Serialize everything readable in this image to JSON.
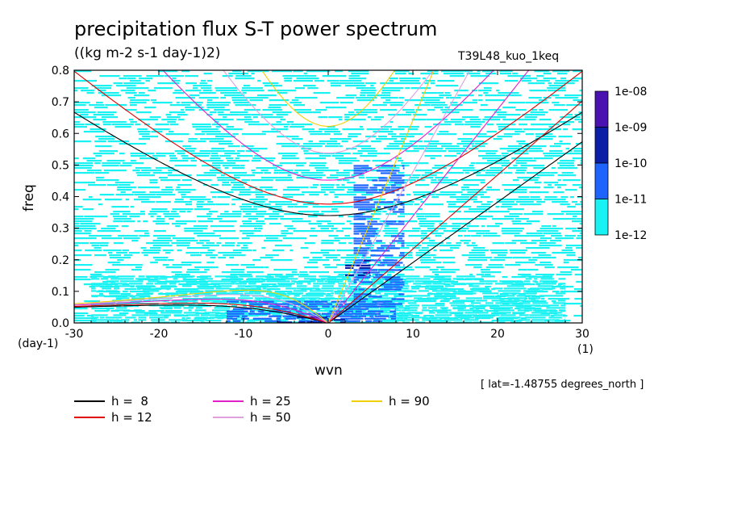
{
  "chart_data": {
    "type": "heatmap",
    "title": "precipitation flux S-T power spectrum",
    "subtitle": "((kg m-2 s-1 day-1)2)",
    "run_label": "T39L48_kuo_1keq",
    "xlabel": "wvn",
    "ylabel": "freq",
    "xunit": "(1)",
    "yunit": "(day-1)",
    "xlim": [
      -30,
      30
    ],
    "ylim": [
      0,
      0.8
    ],
    "xticks": [
      -30,
      -20,
      -10,
      0,
      10,
      20,
      30
    ],
    "xtick_labels": [
      "-30",
      "-20",
      "-10",
      "0",
      "10",
      "20",
      "30"
    ],
    "yticks": [
      0,
      0.1,
      0.2,
      0.3,
      0.4,
      0.5,
      0.6,
      0.7,
      0.8
    ],
    "ytick_labels": [
      "0.0",
      "0.1",
      "0.2",
      "0.3",
      "0.4",
      "0.5",
      "0.6",
      "0.7",
      "0.8"
    ],
    "colorbar": {
      "labels": [
        "1e-08",
        "1e-09",
        "1e-10",
        "1e-11",
        "1e-12"
      ],
      "colors": [
        "#4a12b0",
        "#0a1fa6",
        "#1f63ff",
        "#19f2f2"
      ]
    },
    "spectrum_regions": [
      {
        "level": 1,
        "color": "#19f2f2",
        "description": "broad background fill across domain",
        "xrange": [
          -30,
          30
        ],
        "yrange": [
          0,
          0.8
        ],
        "density": 0.55
      },
      {
        "level": 1,
        "color": "#19f2f2",
        "xrange": [
          -28,
          28
        ],
        "yrange": [
          0,
          0.15
        ],
        "density": 0.85
      },
      {
        "level": 2,
        "color": "#1f63ff",
        "xrange": [
          -12,
          8
        ],
        "yrange": [
          0,
          0.07
        ],
        "density": 0.8
      },
      {
        "level": 2,
        "color": "#1f63ff",
        "xrange": [
          3,
          9
        ],
        "yrange": [
          0.05,
          0.5
        ],
        "density": 0.6
      },
      {
        "level": 3,
        "color": "#0a1fa6",
        "xrange": [
          -6,
          2
        ],
        "yrange": [
          0,
          0.02
        ],
        "density": 0.5
      },
      {
        "level": 3,
        "color": "#0a1fa6",
        "xrange": [
          2,
          5
        ],
        "yrange": [
          0.15,
          0.2
        ],
        "density": 0.3
      }
    ],
    "equivalent_depths": [
      {
        "h": 8,
        "label": "h =  8",
        "color": "#000000"
      },
      {
        "h": 12,
        "label": "h = 12",
        "color": "#e00000"
      },
      {
        "h": 25,
        "label": "h = 25",
        "color": "#e020c8"
      },
      {
        "h": 50,
        "label": "h = 50",
        "color": "#e0a0e0"
      },
      {
        "h": 90,
        "label": "h = 90",
        "color": "#f0d000"
      }
    ],
    "grid": false,
    "legend_position": "bottom-left"
  },
  "annotation": {
    "lat_note": "[ lat=-1.48755 degrees_north ]"
  }
}
